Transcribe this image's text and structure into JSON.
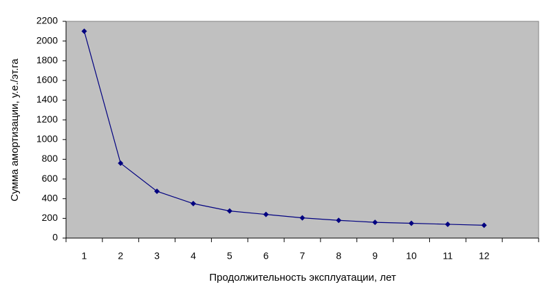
{
  "chart_data": {
    "type": "line",
    "x_label": "Продолжительность эксплуатации, лет",
    "y_label": "Сумма амортизации, у.е./эт.га",
    "categories": [
      "1",
      "2",
      "3",
      "4",
      "5",
      "6",
      "7",
      "8",
      "9",
      "10",
      "11",
      "12",
      null
    ],
    "series": [
      {
        "name": null,
        "color": "#000080",
        "values": [
          2100,
          760,
          475,
          350,
          275,
          240,
          205,
          180,
          160,
          150,
          140,
          130,
          null
        ]
      }
    ],
    "ylim": [
      0,
      2200
    ],
    "yticks": [
      0,
      200,
      400,
      600,
      800,
      1000,
      1200,
      1400,
      1600,
      1800,
      2000,
      2200
    ],
    "plot_background": "#c0c0c0",
    "grid": false
  }
}
